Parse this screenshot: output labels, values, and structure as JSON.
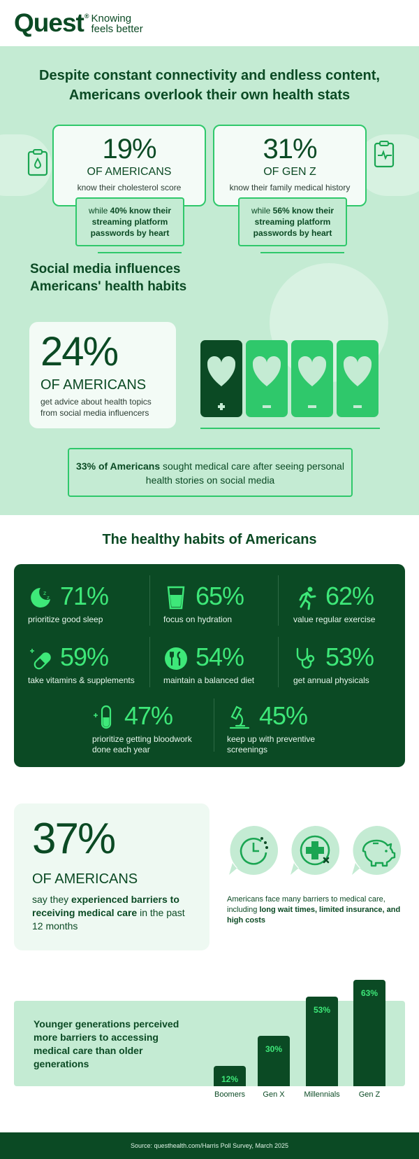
{
  "brand": {
    "name": "Quest",
    "tagline_line1": "Knowing",
    "tagline_line2": "feels better"
  },
  "intro": {
    "title_line1": "Despite constant connectivity and endless content,",
    "title_line2": "Americans overlook their own health stats",
    "stats": [
      {
        "pct": "19%",
        "who": "OF AMERICANS",
        "what": "know their cholesterol score",
        "compare_prefix": "while ",
        "compare_bold": "40% know their streaming platform passwords by heart"
      },
      {
        "pct": "31%",
        "who": "OF GEN Z",
        "what": "know their family medical history",
        "compare_prefix": "while ",
        "compare_bold": "56% know their streaming platform passwords by heart"
      }
    ],
    "side_icons": [
      "clipboard-drop-icon",
      "clipboard-pulse-icon"
    ]
  },
  "social": {
    "title_line1": "Social media influences",
    "title_line2": "Americans' health habits",
    "pct": "24%",
    "who": "OF AMERICANS",
    "what": "get advice about health topics from social media influencers",
    "phones": [
      {
        "state": "plus",
        "color": "#0b4a24"
      },
      {
        "state": "minus",
        "color": "#2fc86b"
      },
      {
        "state": "minus",
        "color": "#2fc86b"
      },
      {
        "state": "minus",
        "color": "#2fc86b"
      }
    ],
    "note_bold": "33% of Americans",
    "note_rest": " sought medical care after seeing personal health stories on social media"
  },
  "habits": {
    "title": "The healthy habits of Americans",
    "items": [
      {
        "pct": "71%",
        "label": "prioritize good sleep",
        "icon": "moon-sleep-icon"
      },
      {
        "pct": "65%",
        "label": "focus on hydration",
        "icon": "water-glass-icon"
      },
      {
        "pct": "62%",
        "label": "value regular exercise",
        "icon": "runner-icon"
      },
      {
        "pct": "59%",
        "label": "take vitamins & supplements",
        "icon": "capsule-icon"
      },
      {
        "pct": "54%",
        "label": "maintain a balanced diet",
        "icon": "plate-utensils-icon"
      },
      {
        "pct": "53%",
        "label": "get annual physicals",
        "icon": "stethoscope-icon"
      },
      {
        "pct": "47%",
        "label": "prioritize getting bloodwork done each year",
        "icon": "test-tube-icon"
      },
      {
        "pct": "45%",
        "label": "keep up with preventive screenings",
        "icon": "microscope-icon"
      }
    ]
  },
  "barriers": {
    "pct": "37%",
    "who": "OF AMERICANS",
    "what_prefix": "say they ",
    "what_bold": "experienced barriers to receiving medical care",
    "what_suffix": " in the past 12 months",
    "icons": [
      "clock-wait-icon",
      "medical-cross-x-icon",
      "piggy-bank-icon"
    ],
    "note_prefix": "Americans face many barriers to medical care, including ",
    "note_bold": "long wait times, limited insurance, and high costs"
  },
  "chart_data": {
    "type": "bar",
    "title": "Younger generations perceived more barriers to accessing medical care than older generations",
    "categories": [
      "Boomers",
      "Gen X",
      "Millennials",
      "Gen Z"
    ],
    "values": [
      12,
      30,
      53,
      63
    ],
    "value_labels": [
      "12%",
      "30%",
      "53%",
      "63%"
    ],
    "bar_color": "#0b4a24",
    "label_color": "#3ee879"
  },
  "footer": {
    "source": "Source: questhealth.com/Harris Poll Survey, March 2025"
  },
  "colors": {
    "dark_green": "#0b4a24",
    "bright_green": "#3ee879",
    "mid_green": "#2fc86b",
    "light_green": "#c4ebd3"
  }
}
